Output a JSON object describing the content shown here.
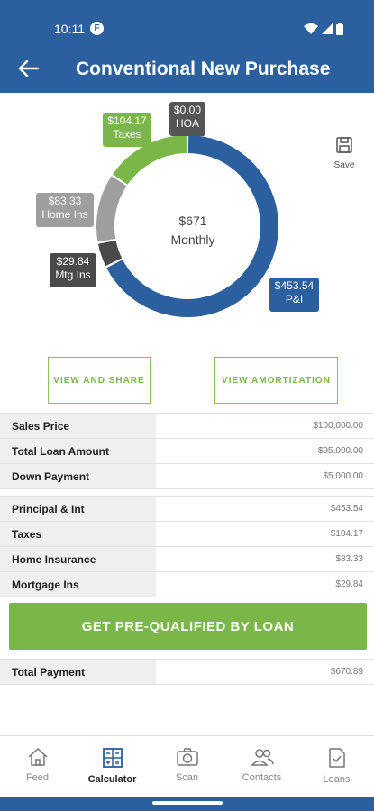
{
  "status": {
    "time": "10:11",
    "app_badge": "F"
  },
  "header": {
    "title": "Conventional New Purchase"
  },
  "chart_data": {
    "type": "pie",
    "center_amount": "$671",
    "center_label": "Monthly",
    "categories": [
      "P&I",
      "Mtg Ins",
      "Home Ins",
      "Taxes",
      "HOA"
    ],
    "values": [
      453.54,
      29.84,
      83.33,
      104.17,
      0.0
    ],
    "colors": [
      "#2b5f9e",
      "#4a4a4a",
      "#9e9e9e",
      "#7ab648",
      "#555555"
    ],
    "labels": {
      "taxes": {
        "amount": "$104.17",
        "name": "Taxes"
      },
      "hoa": {
        "amount": "$0.00",
        "name": "HOA"
      },
      "home_ins": {
        "amount": "$83.33",
        "name": "Home Ins"
      },
      "mtg_ins": {
        "amount": "$29.84",
        "name": "Mtg Ins"
      },
      "pi": {
        "amount": "$453.54",
        "name": "P&I"
      }
    }
  },
  "save": {
    "label": "Save",
    "icon": "save-icon"
  },
  "buttons": {
    "share": "VIEW AND SHARE",
    "amortization": "VIEW AMORTIZATION"
  },
  "loan_table": [
    {
      "label": "Sales Price",
      "value": "$100,000.00"
    },
    {
      "label": "Total Loan Amount",
      "value": "$95,000.00"
    },
    {
      "label": "Down Payment",
      "value": "$5,000.00"
    }
  ],
  "payment_table": [
    {
      "label": "Principal & Int",
      "value": "$453.54"
    },
    {
      "label": "Taxes",
      "value": "$104.17"
    },
    {
      "label": "Home Insurance",
      "value": "$83.33"
    },
    {
      "label": "Mortgage Ins",
      "value": "$29.84"
    }
  ],
  "cta": {
    "label": "GET PRE-QUALIFIED BY LOAN"
  },
  "total": {
    "label": "Total Payment",
    "value": "$670.89"
  },
  "nav": {
    "items": [
      {
        "label": "Feed",
        "icon": "home-icon"
      },
      {
        "label": "Calculator",
        "icon": "calculator-icon"
      },
      {
        "label": "Scan",
        "icon": "camera-icon"
      },
      {
        "label": "Contacts",
        "icon": "contacts-icon"
      },
      {
        "label": "Loans",
        "icon": "document-check-icon"
      }
    ],
    "active": "Calculator"
  }
}
